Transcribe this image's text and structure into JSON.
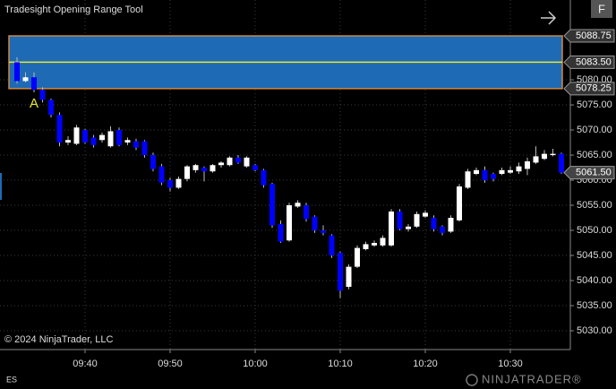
{
  "chart_data": {
    "type": "candlestick",
    "title": "Tradesight Opening Range Tool",
    "watermark": "© 2024 NinjaTrader, LLC",
    "instrument": "ES",
    "logo": "NINJATRADER®",
    "button": "F",
    "annotation_label": "A",
    "categories": [
      null,
      null,
      null,
      null,
      null,
      null,
      null,
      null,
      "09:40",
      null,
      null,
      null,
      null,
      null,
      null,
      null,
      null,
      null,
      "09:50",
      null,
      null,
      null,
      null,
      null,
      null,
      null,
      null,
      null,
      "10:00",
      null,
      null,
      null,
      null,
      null,
      null,
      null,
      null,
      null,
      "10:10",
      null,
      null,
      null,
      null,
      null,
      null,
      null,
      null,
      null,
      "10:20",
      null,
      null,
      null,
      null,
      null,
      null,
      null,
      null,
      null,
      "10:30",
      null,
      null,
      null,
      null,
      null,
      null
    ],
    "open": [
      5083.5,
      5079.75,
      5080.5,
      5078.0,
      5076.0,
      5073.0,
      5067.5,
      5067.25,
      5070.0,
      5068.5,
      5068.0,
      5066.75,
      5070.0,
      5067.5,
      5067.75,
      5067.75,
      5065.0,
      5062.75,
      5060.0,
      5058.5,
      5060.25,
      5062.0,
      5062.5,
      5061.75,
      5063.0,
      5063.0,
      5064.5,
      5062.75,
      5063.0,
      5062.0,
      5059.25,
      5051.25,
      5048.0,
      5054.75,
      5055.0,
      5052.75,
      5050.0,
      5049.0,
      5045.5,
      5038.75,
      5042.75,
      5046.25,
      5047.0,
      5047.0,
      5047.0,
      5053.75,
      5050.25,
      5050.75,
      5052.75,
      5052.5,
      5050.75,
      5049.75,
      5052.0,
      5058.5,
      5061.25,
      5062.0,
      5061.25,
      5061.25,
      5061.5,
      5061.75,
      5062.25,
      5063.5,
      5064.25,
      5065.0,
      5065.25
    ],
    "high": [
      5084.5,
      5081.5,
      5081.5,
      5078.5,
      5076.25,
      5073.5,
      5068.75,
      5071.0,
      5070.25,
      5069.0,
      5069.5,
      5070.75,
      5070.5,
      5068.5,
      5068.25,
      5068.0,
      5065.5,
      5063.25,
      5060.5,
      5060.75,
      5063.0,
      5063.25,
      5062.75,
      5063.25,
      5063.75,
      5064.75,
      5065.0,
      5064.75,
      5063.25,
      5062.25,
      5059.5,
      5052.0,
      5055.5,
      5056.0,
      5055.5,
      5053.0,
      5051.0,
      5049.25,
      5045.75,
      5043.25,
      5047.0,
      5047.75,
      5048.0,
      5049.0,
      5054.25,
      5054.25,
      5051.25,
      5053.75,
      5054.0,
      5053.0,
      5051.0,
      5053.0,
      5059.25,
      5062.25,
      5062.5,
      5062.75,
      5061.5,
      5062.5,
      5062.75,
      5063.5,
      5064.5,
      5066.75,
      5066.0,
      5066.25,
      5065.5
    ],
    "low": [
      5079.25,
      5079.5,
      5077.5,
      5075.5,
      5072.5,
      5066.75,
      5067.0,
      5067.0,
      5067.25,
      5066.5,
      5067.5,
      5066.5,
      5066.75,
      5067.0,
      5066.0,
      5064.5,
      5061.75,
      5059.0,
      5057.75,
      5058.25,
      5059.75,
      5061.5,
      5059.75,
      5061.5,
      5062.5,
      5062.75,
      5063.25,
      5062.5,
      5061.75,
      5058.5,
      5050.5,
      5047.5,
      5047.75,
      5054.5,
      5051.75,
      5049.5,
      5049.0,
      5044.5,
      5036.5,
      5038.25,
      5042.5,
      5046.0,
      5046.75,
      5046.75,
      5046.75,
      5050.0,
      5049.75,
      5050.5,
      5052.5,
      5049.75,
      5049.0,
      5049.5,
      5051.75,
      5058.25,
      5061.0,
      5059.5,
      5059.75,
      5061.0,
      5061.25,
      5061.25,
      5061.0,
      5063.25,
      5064.0,
      5064.75,
      5061.25
    ],
    "close": [
      5079.75,
      5080.5,
      5078.0,
      5076.0,
      5073.0,
      5067.5,
      5068.0,
      5070.5,
      5067.5,
      5067.0,
      5069.0,
      5069.75,
      5067.0,
      5068.0,
      5066.5,
      5065.0,
      5062.25,
      5059.5,
      5058.5,
      5060.25,
      5062.75,
      5063.0,
      5061.75,
      5063.0,
      5063.5,
      5064.5,
      5063.5,
      5064.5,
      5062.0,
      5059.0,
      5051.0,
      5047.75,
      5055.0,
      5055.5,
      5052.25,
      5050.0,
      5049.5,
      5045.0,
      5038.0,
      5042.75,
      5046.5,
      5047.25,
      5047.5,
      5048.5,
      5053.75,
      5050.25,
      5050.75,
      5053.25,
      5053.5,
      5050.25,
      5049.5,
      5052.5,
      5058.75,
      5061.75,
      5062.0,
      5060.0,
      5060.25,
      5062.0,
      5062.0,
      5062.75,
      5063.75,
      5064.75,
      5065.25,
      5065.25,
      5061.5
    ],
    "up_color": "#ffffff",
    "down_color": "#0000ff",
    "opening_range": {
      "high": 5088.75,
      "high_label": "5088.75",
      "mid": 5083.5,
      "mid_label": "5083.50",
      "low": 5078.25,
      "low_label": "5078.25",
      "fill": "#1e6ab4",
      "border": "#d08840",
      "mid_color": "#e8e830"
    },
    "last_price": {
      "value": 5061.5,
      "label": "5061.50"
    },
    "ylim": [
      5026.25,
      5095.9
    ],
    "yticks": [
      {
        "value": 5030,
        "label": "5030.00"
      },
      {
        "value": 5035,
        "label": "5035.00"
      },
      {
        "value": 5040,
        "label": "5040.00"
      },
      {
        "value": 5045,
        "label": "5045.00"
      },
      {
        "value": 5050,
        "label": "5050.00"
      },
      {
        "value": 5055,
        "label": "5055.00"
      },
      {
        "value": 5060,
        "label": "5060.00"
      },
      {
        "value": 5065,
        "label": "5065.00"
      },
      {
        "value": 5070,
        "label": "5070.00"
      },
      {
        "value": 5075,
        "label": "5075.00"
      },
      {
        "value": 5080,
        "label": "5080.00"
      }
    ],
    "grid": true
  }
}
